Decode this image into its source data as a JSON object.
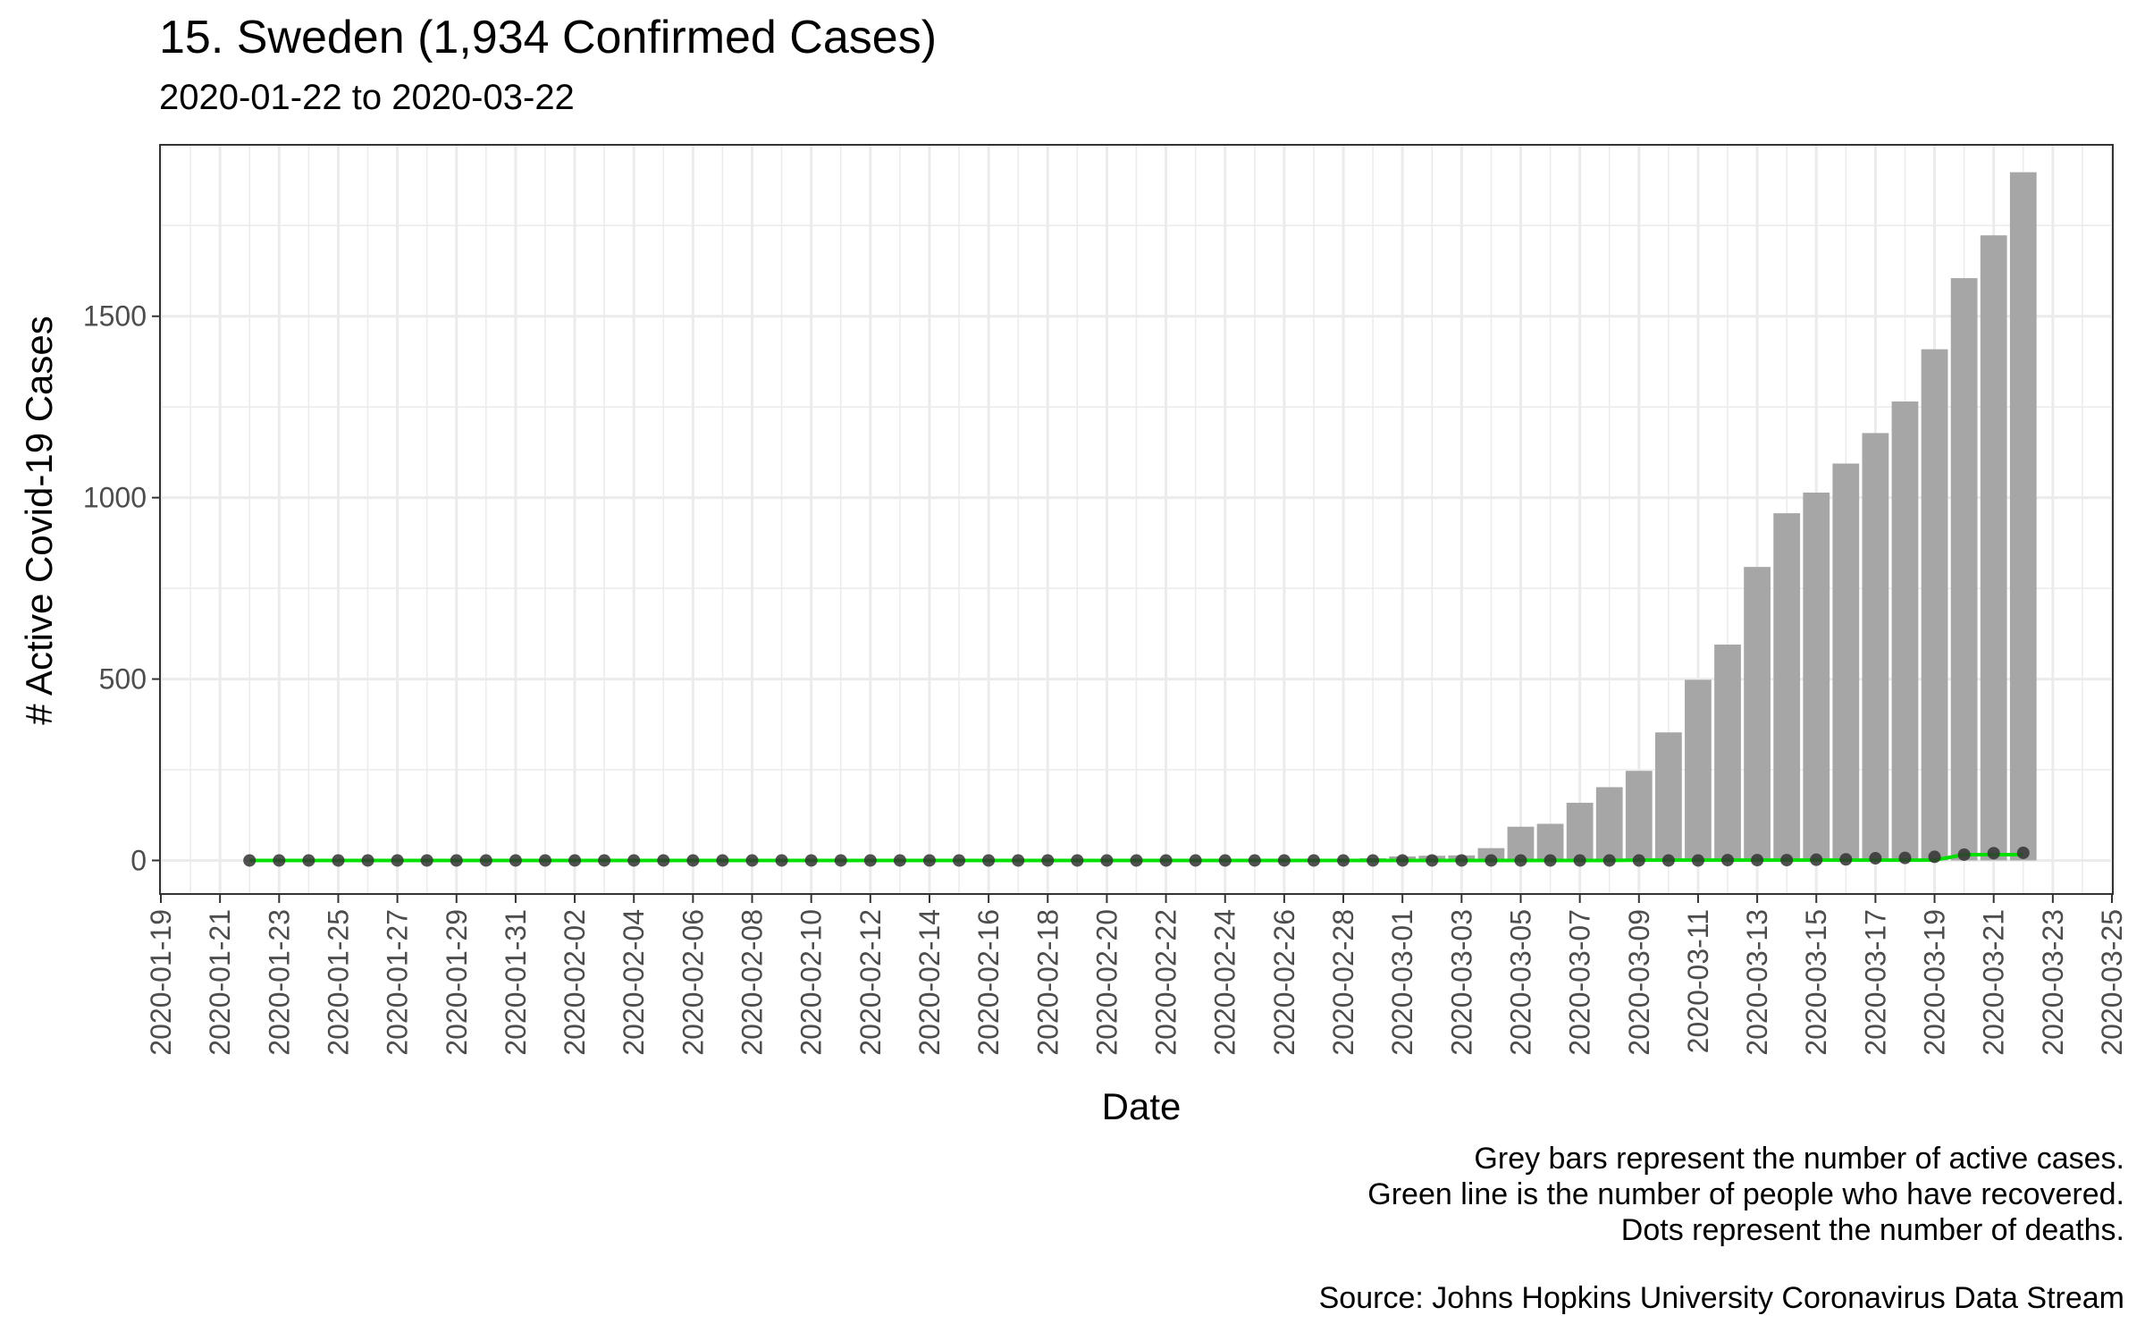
{
  "title": "15. Sweden (1,934 Confirmed Cases)",
  "subtitle": "2020-01-22 to 2020-03-22",
  "caption": {
    "line1": "Grey bars represent the number of active cases.",
    "line2": "Green line is the number of people who have recovered.",
    "line3": "Dots represent the number of deaths.",
    "source": "Source: Johns Hopkins University Coronavirus Data Stream"
  },
  "colors": {
    "bar": "#a6a6a6",
    "line": "#00e000",
    "dot": "#333333",
    "grid": "#ebebeb",
    "panel_border": "#333333"
  },
  "chart_data": {
    "type": "bar",
    "xlabel": "Date",
    "ylabel": "# Active Covid-19 Cases",
    "xlim": [
      "2020-01-19",
      "2020-03-25"
    ],
    "ylim": [
      -90,
      1970
    ],
    "yticks": [
      0,
      500,
      1000,
      1500
    ],
    "xticks": [
      "2020-01-19",
      "2020-01-21",
      "2020-01-23",
      "2020-01-25",
      "2020-01-27",
      "2020-01-29",
      "2020-01-31",
      "2020-02-02",
      "2020-02-04",
      "2020-02-06",
      "2020-02-08",
      "2020-02-10",
      "2020-02-12",
      "2020-02-14",
      "2020-02-16",
      "2020-02-18",
      "2020-02-20",
      "2020-02-22",
      "2020-02-24",
      "2020-02-26",
      "2020-02-28",
      "2020-03-01",
      "2020-03-03",
      "2020-03-05",
      "2020-03-07",
      "2020-03-09",
      "2020-03-11",
      "2020-03-13",
      "2020-03-15",
      "2020-03-17",
      "2020-03-19",
      "2020-03-21",
      "2020-03-23",
      "2020-03-25"
    ],
    "grid": true,
    "x_start": "2020-01-22",
    "series": [
      {
        "name": "Active cases",
        "values": [
          0,
          0,
          0,
          0,
          0,
          0,
          0,
          0,
          0,
          0,
          1,
          1,
          1,
          1,
          1,
          1,
          1,
          1,
          1,
          1,
          1,
          1,
          1,
          1,
          1,
          1,
          1,
          1,
          1,
          1,
          1,
          1,
          1,
          1,
          1,
          1,
          1,
          1,
          6,
          11,
          13,
          14,
          34,
          93,
          101,
          159,
          202,
          247,
          353,
          498,
          595,
          809,
          957,
          1014,
          1094,
          1178,
          1265,
          1409,
          1605,
          1723,
          1897
        ]
      },
      {
        "name": "Recovered",
        "values": [
          0,
          0,
          0,
          0,
          0,
          0,
          0,
          0,
          0,
          0,
          0,
          0,
          0,
          0,
          0,
          0,
          0,
          0,
          0,
          0,
          0,
          0,
          0,
          0,
          0,
          0,
          0,
          0,
          0,
          0,
          0,
          0,
          0,
          0,
          0,
          0,
          0,
          0,
          0,
          0,
          0,
          0,
          0,
          0,
          0,
          0,
          0,
          1,
          1,
          1,
          1,
          1,
          1,
          1,
          1,
          1,
          1,
          1,
          16,
          16,
          16
        ]
      },
      {
        "name": "Deaths",
        "values": [
          0,
          0,
          0,
          0,
          0,
          0,
          0,
          0,
          0,
          0,
          0,
          0,
          0,
          0,
          0,
          0,
          0,
          0,
          0,
          0,
          0,
          0,
          0,
          0,
          0,
          0,
          0,
          0,
          0,
          0,
          0,
          0,
          0,
          0,
          0,
          0,
          0,
          0,
          0,
          0,
          0,
          0,
          0,
          0,
          0,
          0,
          0,
          0,
          0,
          0,
          1,
          1,
          1,
          2,
          3,
          6,
          7,
          10,
          16,
          20,
          21
        ]
      }
    ]
  }
}
